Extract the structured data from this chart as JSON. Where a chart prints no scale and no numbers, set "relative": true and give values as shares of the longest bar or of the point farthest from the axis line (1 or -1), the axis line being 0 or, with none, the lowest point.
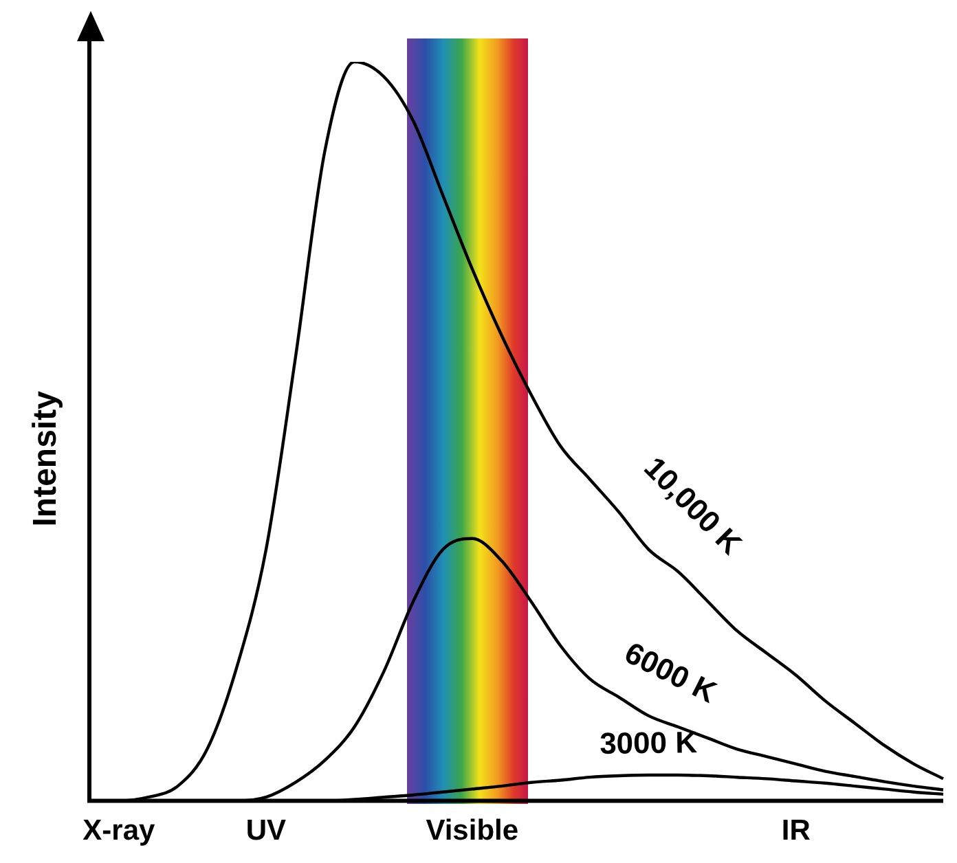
{
  "chart_data": {
    "type": "line",
    "relative": true,
    "ylabel": "Intensity",
    "categories": [
      null,
      "X-ray",
      null,
      null,
      null,
      null,
      "UV",
      null,
      null,
      null,
      null,
      null,
      null,
      "Visible",
      null,
      null,
      null,
      null,
      null,
      null,
      null,
      null,
      null,
      null,
      "IR",
      null,
      null,
      null,
      null,
      null
    ],
    "series": [
      {
        "name": "10,000 K",
        "color": "#000000",
        "values": [
          0,
          0,
          0.005,
          0.02,
          0.07,
          0.18,
          0.34,
          0.6,
          0.88,
          1,
          0.98,
          0.92,
          0.82,
          0.72,
          0.63,
          0.55,
          0.48,
          0.435,
          0.39,
          0.34,
          0.31,
          0.27,
          0.23,
          0.2,
          0.17,
          0.135,
          0.105,
          0.075,
          0.05,
          0.03
        ]
      },
      {
        "name": "6000 K",
        "color": "#000000",
        "values": [
          0,
          0,
          0,
          0,
          0,
          0,
          0.005,
          0.025,
          0.055,
          0.1,
          0.175,
          0.27,
          0.34,
          0.355,
          0.325,
          0.27,
          0.21,
          0.165,
          0.14,
          0.115,
          0.1,
          0.085,
          0.07,
          0.06,
          0.05,
          0.04,
          0.033,
          0.026,
          0.02,
          0.015
        ]
      },
      {
        "name": "3000 K",
        "color": "#000000",
        "values": [
          0,
          0,
          0,
          0,
          0,
          0,
          0,
          0,
          0,
          0.002,
          0.005,
          0.008,
          0.012,
          0.016,
          0.02,
          0.025,
          0.028,
          0.032,
          0.034,
          0.035,
          0.035,
          0.034,
          0.032,
          0.03,
          0.027,
          0.024,
          0.02,
          0.016,
          0.012,
          0.009
        ]
      }
    ],
    "legend": false,
    "grid": false,
    "marker": "none"
  }
}
